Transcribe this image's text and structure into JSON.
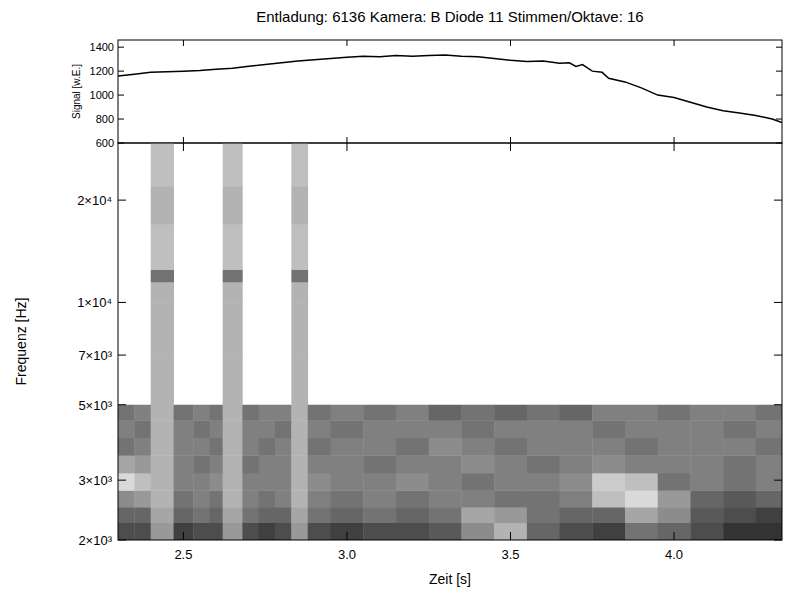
{
  "chart_data": [
    {
      "type": "line",
      "title": "Entladung: 6136 Kamera: B Diode 11 Stimmen/Oktave: 16",
      "ylabel": "Signal [w.E.]",
      "x": [
        2.3,
        2.35,
        2.4,
        2.45,
        2.5,
        2.55,
        2.6,
        2.65,
        2.7,
        2.75,
        2.8,
        2.85,
        2.9,
        2.95,
        3.0,
        3.05,
        3.1,
        3.15,
        3.2,
        3.25,
        3.3,
        3.35,
        3.4,
        3.45,
        3.5,
        3.55,
        3.6,
        3.65,
        3.68,
        3.7,
        3.72,
        3.75,
        3.78,
        3.8,
        3.85,
        3.9,
        3.95,
        4.0,
        4.05,
        4.1,
        4.15,
        4.2,
        4.25,
        4.3,
        4.33
      ],
      "values": [
        1160,
        1175,
        1190,
        1195,
        1200,
        1205,
        1215,
        1225,
        1240,
        1255,
        1270,
        1285,
        1295,
        1305,
        1315,
        1325,
        1320,
        1330,
        1325,
        1330,
        1335,
        1325,
        1320,
        1305,
        1290,
        1280,
        1285,
        1265,
        1270,
        1240,
        1255,
        1200,
        1190,
        1140,
        1110,
        1060,
        1000,
        980,
        940,
        900,
        870,
        850,
        830,
        800,
        770
      ],
      "color": "#000000",
      "xlim": [
        2.3,
        4.33
      ],
      "ylim": [
        600,
        1460
      ],
      "xticks": [
        2.5,
        3,
        3.5,
        4
      ],
      "yticks": [
        600,
        800,
        1000,
        1200,
        1400
      ],
      "tick_labels": "y"
    },
    {
      "type": "heatmap",
      "xlabel": "Zeit [s]",
      "ylabel": "Frequenz [Hz]",
      "log": "y",
      "x_edges": [
        2.3,
        2.35,
        2.4,
        2.47,
        2.53,
        2.58,
        2.62,
        2.68,
        2.73,
        2.78,
        2.83,
        2.88,
        2.95,
        3.05,
        3.15,
        3.25,
        3.35,
        3.45,
        3.55,
        3.65,
        3.75,
        3.85,
        3.95,
        4.05,
        4.15,
        4.25,
        4.33
      ],
      "y_edges": [
        2000,
        2250,
        2500,
        2800,
        3150,
        3550,
        4000,
        4500,
        5000,
        7000,
        10000,
        11500,
        12500,
        17000,
        22000,
        29450
      ],
      "cells": [
        [
          0.7,
          0.7,
          0.4,
          0.75,
          0.7,
          0.7,
          0.4,
          0.7,
          0.75,
          0.7,
          0.4,
          0.7,
          0.75,
          0.7,
          0.7,
          0.65,
          0.45,
          0.3,
          0.6,
          0.7,
          0.75,
          0.55,
          0.6,
          0.7,
          0.8,
          0.8
        ],
        [
          0.6,
          0.6,
          0.35,
          0.6,
          0.55,
          0.6,
          0.35,
          0.55,
          0.6,
          0.6,
          0.35,
          0.55,
          0.6,
          0.55,
          0.6,
          0.55,
          0.35,
          0.4,
          0.55,
          0.6,
          0.6,
          0.35,
          0.45,
          0.65,
          0.7,
          0.75
        ],
        [
          0.45,
          0.4,
          0.3,
          0.55,
          0.5,
          0.55,
          0.3,
          0.5,
          0.55,
          0.5,
          0.3,
          0.5,
          0.55,
          0.5,
          0.55,
          0.5,
          0.5,
          0.55,
          0.55,
          0.5,
          0.25,
          0.15,
          0.4,
          0.6,
          0.65,
          0.6
        ],
        [
          0.15,
          0.25,
          0.3,
          0.5,
          0.5,
          0.45,
          0.3,
          0.5,
          0.5,
          0.5,
          0.3,
          0.45,
          0.5,
          0.5,
          0.45,
          0.5,
          0.55,
          0.5,
          0.5,
          0.45,
          0.2,
          0.25,
          0.55,
          0.5,
          0.55,
          0.5
        ],
        [
          0.35,
          0.4,
          0.3,
          0.5,
          0.55,
          0.5,
          0.3,
          0.55,
          0.5,
          0.5,
          0.3,
          0.5,
          0.5,
          0.55,
          0.5,
          0.5,
          0.45,
          0.5,
          0.55,
          0.5,
          0.45,
          0.5,
          0.5,
          0.5,
          0.55,
          0.5
        ],
        [
          0.55,
          0.5,
          0.3,
          0.5,
          0.5,
          0.55,
          0.3,
          0.5,
          0.55,
          0.5,
          0.3,
          0.55,
          0.5,
          0.5,
          0.55,
          0.45,
          0.5,
          0.55,
          0.5,
          0.5,
          0.5,
          0.55,
          0.5,
          0.5,
          0.5,
          0.55
        ],
        [
          0.5,
          0.55,
          0.3,
          0.5,
          0.55,
          0.5,
          0.3,
          0.5,
          0.5,
          0.55,
          0.3,
          0.5,
          0.55,
          0.5,
          0.5,
          0.5,
          0.55,
          0.5,
          0.5,
          0.5,
          0.55,
          0.5,
          0.5,
          0.5,
          0.55,
          0.5
        ],
        [
          0.55,
          0.5,
          0.3,
          0.55,
          0.5,
          0.55,
          0.3,
          0.55,
          0.5,
          0.5,
          0.3,
          0.55,
          0.5,
          0.55,
          0.5,
          0.6,
          0.55,
          0.6,
          0.55,
          0.6,
          0.5,
          0.5,
          0.55,
          0.5,
          0.5,
          0.55
        ],
        [
          null,
          null,
          0.3,
          null,
          null,
          null,
          0.3,
          null,
          null,
          null,
          0.3,
          null,
          null,
          null,
          null,
          null,
          null,
          null,
          null,
          null,
          null,
          null,
          null,
          null,
          null,
          null
        ],
        [
          null,
          null,
          0.3,
          null,
          null,
          null,
          0.3,
          null,
          null,
          null,
          0.3,
          null,
          null,
          null,
          null,
          null,
          null,
          null,
          null,
          null,
          null,
          null,
          null,
          null,
          null,
          null
        ],
        [
          null,
          null,
          0.3,
          null,
          null,
          null,
          0.3,
          null,
          null,
          null,
          0.3,
          null,
          null,
          null,
          null,
          null,
          null,
          null,
          null,
          null,
          null,
          null,
          null,
          null,
          null,
          null
        ],
        [
          null,
          null,
          0.55,
          null,
          null,
          null,
          0.55,
          null,
          null,
          null,
          0.55,
          null,
          null,
          null,
          null,
          null,
          null,
          null,
          null,
          null,
          null,
          null,
          null,
          null,
          null,
          null
        ],
        [
          null,
          null,
          0.25,
          null,
          null,
          null,
          0.25,
          null,
          null,
          null,
          0.25,
          null,
          null,
          null,
          null,
          null,
          null,
          null,
          null,
          null,
          null,
          null,
          null,
          null,
          null,
          null
        ],
        [
          null,
          null,
          0.3,
          null,
          null,
          null,
          0.3,
          null,
          null,
          null,
          0.3,
          null,
          null,
          null,
          null,
          null,
          null,
          null,
          null,
          null,
          null,
          null,
          null,
          null,
          null,
          null
        ],
        [
          null,
          null,
          0.25,
          null,
          null,
          null,
          0.25,
          null,
          null,
          null,
          0.25,
          null,
          null,
          null,
          null,
          null,
          null,
          null,
          null,
          null,
          null,
          null,
          null,
          null,
          null,
          null
        ]
      ],
      "zlim": [
        0,
        1
      ],
      "xlim": [
        2.3,
        4.33
      ],
      "ylim": [
        2000,
        29450
      ],
      "xticks": [
        2.5,
        {
          "value": 3,
          "label": "3.0"
        },
        3.5,
        {
          "value": 4,
          "label": "4.0"
        }
      ],
      "yticks": [
        {
          "value": 2000,
          "label": "2×10³"
        },
        {
          "value": 3000,
          "label": "3×10³"
        },
        {
          "value": 5000,
          "label": "5×10³"
        },
        {
          "value": 7000,
          "label": "7×10³"
        },
        {
          "value": 10000,
          "label": "1×10⁴"
        },
        {
          "value": 20000,
          "label": "2×10⁴"
        }
      ]
    }
  ]
}
